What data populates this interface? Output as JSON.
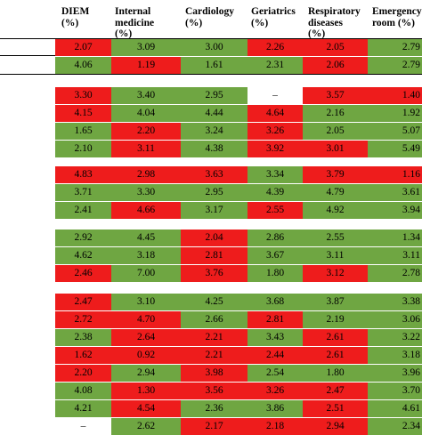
{
  "headers": [
    {
      "lines": [
        "DIEM",
        "(%)"
      ]
    },
    {
      "lines": [
        "Internal",
        "medicine",
        "(%)"
      ]
    },
    {
      "lines": [
        "Cardiology",
        "(%)"
      ]
    },
    {
      "lines": [
        "Geriatrics",
        "(%)"
      ]
    },
    {
      "lines": [
        "Respiratory",
        "diseases",
        "(%)"
      ]
    },
    {
      "lines": [
        "Emergency",
        "room (%)"
      ]
    }
  ],
  "colors": {
    "red": "#ee1c1c",
    "green": "#6fa642"
  },
  "groups": [
    [
      {
        "values": [
          "2.07",
          "3.09",
          "3.00",
          "2.26",
          "2.05",
          "2.79"
        ],
        "colors": [
          "r",
          "g",
          "g",
          "r",
          "r",
          "g"
        ]
      }
    ],
    [
      {
        "values": [
          "4.06",
          "1.19",
          "1.61",
          "2.31",
          "2.06",
          "2.79"
        ],
        "colors": [
          "g",
          "r",
          "g",
          "g",
          "r",
          "g"
        ]
      }
    ],
    [
      {
        "values": [
          "3.30",
          "3.40",
          "2.95",
          "–",
          "3.57",
          "1.40"
        ],
        "colors": [
          "r",
          "g",
          "g",
          "w",
          "r",
          "r"
        ]
      },
      {
        "values": [
          "4.15",
          "4.04",
          "4.44",
          "4.64",
          "2.16",
          "1.92"
        ],
        "colors": [
          "r",
          "g",
          "g",
          "r",
          "g",
          "g"
        ]
      },
      {
        "values": [
          "1.65",
          "2.20",
          "3.24",
          "3.26",
          "2.05",
          "5.07"
        ],
        "colors": [
          "g",
          "r",
          "g",
          "r",
          "g",
          "g"
        ]
      },
      {
        "values": [
          "2.10",
          "3.11",
          "4.38",
          "3.92",
          "3.01",
          "5.49"
        ],
        "colors": [
          "g",
          "r",
          "g",
          "r",
          "r",
          "g"
        ]
      }
    ],
    [
      {
        "values": [
          "4.83",
          "2.98",
          "3.63",
          "3.34",
          "3.79",
          "1.16"
        ],
        "colors": [
          "r",
          "r",
          "r",
          "g",
          "r",
          "r"
        ]
      },
      {
        "values": [
          "3.71",
          "3.30",
          "2.95",
          "4.39",
          "4.79",
          "3.61"
        ],
        "colors": [
          "g",
          "g",
          "g",
          "g",
          "g",
          "g"
        ]
      },
      {
        "values": [
          "2.41",
          "4.66",
          "3.17",
          "2.55",
          "4.92",
          "3.94"
        ],
        "colors": [
          "g",
          "r",
          "g",
          "r",
          "g",
          "g"
        ]
      }
    ],
    [
      {
        "values": [
          "2.92",
          "4.45",
          "2.04",
          "2.86",
          "2.55",
          "1.34"
        ],
        "colors": [
          "g",
          "g",
          "r",
          "g",
          "g",
          "g"
        ]
      },
      {
        "values": [
          "4.62",
          "3.18",
          "2.81",
          "3.67",
          "3.11",
          "3.11"
        ],
        "colors": [
          "g",
          "g",
          "r",
          "g",
          "g",
          "g"
        ]
      },
      {
        "values": [
          "2.46",
          "7.00",
          "3.76",
          "1.80",
          "3.12",
          "2.78"
        ],
        "colors": [
          "r",
          "g",
          "r",
          "g",
          "r",
          "g"
        ]
      }
    ],
    [
      {
        "values": [
          "2.47",
          "3.10",
          "4.25",
          "3.68",
          "3.87",
          "3.38"
        ],
        "colors": [
          "r",
          "g",
          "g",
          "g",
          "g",
          "g"
        ]
      },
      {
        "values": [
          "2.72",
          "4.70",
          "2.66",
          "2.81",
          "2.19",
          "3.06"
        ],
        "colors": [
          "r",
          "r",
          "g",
          "r",
          "g",
          "g"
        ]
      },
      {
        "values": [
          "2.38",
          "2.64",
          "2.21",
          "3.43",
          "2.61",
          "3.22"
        ],
        "colors": [
          "g",
          "r",
          "r",
          "g",
          "r",
          "g"
        ]
      },
      {
        "values": [
          "1.62",
          "0.92",
          "2.21",
          "2.44",
          "2.61",
          "3.18"
        ],
        "colors": [
          "r",
          "r",
          "r",
          "r",
          "r",
          "g"
        ]
      },
      {
        "values": [
          "2.20",
          "2.94",
          "3.98",
          "2.54",
          "1.80",
          "3.96"
        ],
        "colors": [
          "r",
          "g",
          "r",
          "g",
          "g",
          "g"
        ]
      },
      {
        "values": [
          "4.08",
          "1.30",
          "3.56",
          "3.26",
          "2.47",
          "3.70"
        ],
        "colors": [
          "g",
          "r",
          "r",
          "r",
          "r",
          "g"
        ]
      },
      {
        "values": [
          "4.21",
          "4.54",
          "2.36",
          "3.86",
          "2.51",
          "4.61"
        ],
        "colors": [
          "g",
          "r",
          "g",
          "g",
          "r",
          "g"
        ]
      },
      {
        "values": [
          "–",
          "2.62",
          "2.17",
          "2.18",
          "2.94",
          "2.34"
        ],
        "colors": [
          "w",
          "g",
          "r",
          "r",
          "r",
          "g"
        ]
      }
    ]
  ]
}
